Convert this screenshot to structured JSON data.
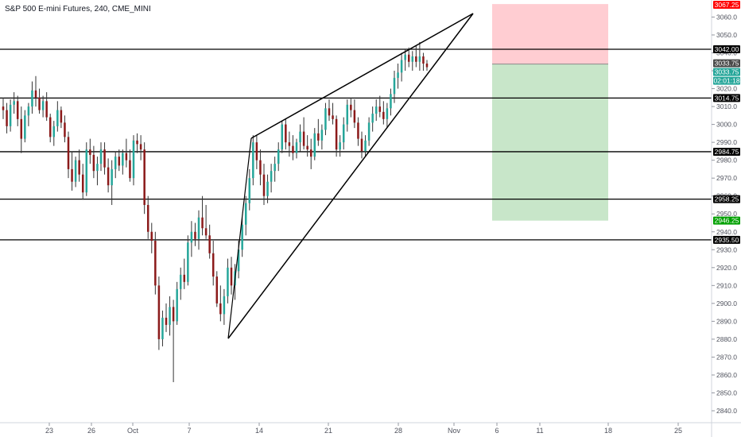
{
  "title": "S&P 500 E-mini Futures, 240, CME_MINI",
  "chart_data": {
    "type": "candlestick",
    "title": "S&P 500 E-mini Futures, 240, CME_MINI",
    "y_axis_position": "right",
    "ylim": [
      2835,
      3072
    ],
    "y_ticks": [
      2840,
      2850,
      2860,
      2870,
      2880,
      2890,
      2900,
      2910,
      2920,
      2930,
      2940,
      2950,
      2960,
      2970,
      2980,
      2990,
      3000,
      3010,
      3020,
      3030,
      3040,
      3050,
      3060
    ],
    "x_labels": [
      "23",
      "26",
      "Oct",
      "7",
      "14",
      "21",
      "28",
      "Nov",
      "6",
      "11",
      "18",
      "25"
    ],
    "horizontal_levels": [
      3042.0,
      3014.75,
      2984.75,
      2958.25,
      2935.5
    ],
    "price_badges": [
      {
        "label": "3067.25",
        "value": 3067.25,
        "bg": "#ff0000",
        "fg": "#ffffff"
      },
      {
        "label": "3042.00",
        "value": 3042.0,
        "bg": "#000000",
        "fg": "#ffffff"
      },
      {
        "label": "3033.75",
        "value": 3033.75,
        "bg": "#4a4a4a",
        "fg": "#ffffff"
      },
      {
        "label": "3033.75",
        "value": 3033.75,
        "bg": "#26a69a",
        "fg": "#ffffff"
      },
      {
        "label": "02:01:18",
        "value": 3033.75,
        "bg": "#26a69a",
        "fg": "#ffffff"
      },
      {
        "label": "3014.75",
        "value": 3014.75,
        "bg": "#000000",
        "fg": "#ffffff"
      },
      {
        "label": "2984.75",
        "value": 2984.75,
        "bg": "#000000",
        "fg": "#ffffff"
      },
      {
        "label": "2958.25",
        "value": 2958.25,
        "bg": "#000000",
        "fg": "#ffffff"
      },
      {
        "label": "2946.25",
        "value": 2946.25,
        "bg": "#00a000",
        "fg": "#ffffff"
      },
      {
        "label": "2935.50",
        "value": 2935.5,
        "bg": "#000000",
        "fg": "#ffffff"
      }
    ],
    "short_position": {
      "stop": 3067.25,
      "entry": 3033.75,
      "target": 2946.25,
      "risk_color": "#ffcdd2",
      "reward_color": "#c8e6c9"
    },
    "rising_wedge": {
      "upper": [
        [
          2994,
          "Oct 13"
        ],
        [
          3067,
          "Nov 1"
        ]
      ],
      "lower": [
        [
          2883,
          "Oct 10"
        ],
        [
          3067,
          "Nov 1"
        ]
      ]
    },
    "colors": {
      "up": "#26a69a",
      "down": "#8b1a1a",
      "wick": "#333333"
    },
    "candles": [
      [
        3010,
        3015,
        3003,
        3008
      ],
      [
        3008,
        3012,
        2995,
        2999
      ],
      [
        2999,
        3014,
        2996,
        3011
      ],
      [
        3011,
        3018,
        3006,
        3013
      ],
      [
        3013,
        3016,
        2999,
        3003
      ],
      [
        3003,
        3010,
        2984,
        2992
      ],
      [
        2992,
        3008,
        2990,
        3005
      ],
      [
        3005,
        3012,
        2999,
        3010
      ],
      [
        3010,
        3024,
        3006,
        3019
      ],
      [
        3019,
        3027,
        3010,
        3015
      ],
      [
        3015,
        3020,
        3006,
        3008
      ],
      [
        3008,
        3016,
        3004,
        3013
      ],
      [
        3013,
        3018,
        3002,
        3004
      ],
      [
        3004,
        3006,
        2990,
        2993
      ],
      [
        2993,
        3002,
        2988,
        2999
      ],
      [
        2999,
        3013,
        2996,
        3008
      ],
      [
        3008,
        3010,
        2998,
        3001
      ],
      [
        3001,
        3005,
        2990,
        2993
      ],
      [
        2993,
        2996,
        2970,
        2975
      ],
      [
        2975,
        2985,
        2963,
        2968
      ],
      [
        2968,
        2982,
        2965,
        2980
      ],
      [
        2980,
        2986,
        2968,
        2972
      ],
      [
        2972,
        2978,
        2958,
        2962
      ],
      [
        2962,
        2990,
        2960,
        2986
      ],
      [
        2986,
        2992,
        2978,
        2983
      ],
      [
        2983,
        2988,
        2970,
        2974
      ],
      [
        2974,
        2982,
        2966,
        2978
      ],
      [
        2978,
        2990,
        2974,
        2986
      ],
      [
        2986,
        2990,
        2972,
        2976
      ],
      [
        2976,
        2981,
        2962,
        2966
      ],
      [
        2966,
        2980,
        2955,
        2975
      ],
      [
        2975,
        2985,
        2970,
        2982
      ],
      [
        2982,
        2986,
        2974,
        2977
      ],
      [
        2977,
        2986,
        2972,
        2984
      ],
      [
        2984,
        2992,
        2976,
        2980
      ],
      [
        2980,
        2986,
        2968,
        2970
      ],
      [
        2970,
        2994,
        2966,
        2991
      ],
      [
        2991,
        2995,
        2984,
        2989
      ],
      [
        2989,
        2994,
        2980,
        2986
      ],
      [
        2986,
        2990,
        2950,
        2955
      ],
      [
        2955,
        2960,
        2936,
        2940
      ],
      [
        2940,
        2945,
        2928,
        2935
      ],
      [
        2935,
        2940,
        2905,
        2910
      ],
      [
        2910,
        2915,
        2874,
        2880
      ],
      [
        2880,
        2896,
        2876,
        2892
      ],
      [
        2892,
        2900,
        2884,
        2888
      ],
      [
        2888,
        2904,
        2882,
        2898
      ],
      [
        2898,
        2902,
        2856,
        2890
      ],
      [
        2890,
        2912,
        2888,
        2908
      ],
      [
        2908,
        2920,
        2902,
        2916
      ],
      [
        2916,
        2925,
        2908,
        2912
      ],
      [
        2912,
        2938,
        2910,
        2934
      ],
      [
        2934,
        2946,
        2926,
        2940
      ],
      [
        2940,
        2945,
        2932,
        2936
      ],
      [
        2936,
        2952,
        2930,
        2948
      ],
      [
        2948,
        2960,
        2938,
        2942
      ],
      [
        2942,
        2955,
        2936,
        2938
      ],
      [
        2938,
        2944,
        2925,
        2928
      ],
      [
        2928,
        2935,
        2910,
        2915
      ],
      [
        2915,
        2918,
        2898,
        2900
      ],
      [
        2900,
        2910,
        2890,
        2894
      ],
      [
        2894,
        2908,
        2888,
        2904
      ],
      [
        2904,
        2925,
        2900,
        2920
      ],
      [
        2920,
        2926,
        2905,
        2910
      ],
      [
        2910,
        2922,
        2902,
        2918
      ],
      [
        2918,
        2935,
        2914,
        2930
      ],
      [
        2930,
        2948,
        2926,
        2944
      ],
      [
        2944,
        2960,
        2938,
        2956
      ],
      [
        2956,
        2975,
        2952,
        2970
      ],
      [
        2970,
        2994,
        2966,
        2990
      ],
      [
        2990,
        2994,
        2975,
        2980
      ],
      [
        2980,
        2986,
        2966,
        2972
      ],
      [
        2972,
        2978,
        2955,
        2960
      ],
      [
        2960,
        2972,
        2956,
        2968
      ],
      [
        2968,
        2978,
        2962,
        2974
      ],
      [
        2974,
        2982,
        2968,
        2978
      ],
      [
        2978,
        2990,
        2974,
        2986
      ],
      [
        2986,
        3002,
        2984,
        3000
      ],
      [
        3000,
        3003,
        2986,
        2990
      ],
      [
        2990,
        2996,
        2982,
        2988
      ],
      [
        2988,
        2994,
        2980,
        2984
      ],
      [
        2984,
        2992,
        2981,
        2990
      ],
      [
        2990,
        3000,
        2985,
        2996
      ],
      [
        2996,
        3004,
        2986,
        2988
      ],
      [
        2988,
        2994,
        2982,
        2986
      ],
      [
        2986,
        2992,
        2975,
        2982
      ],
      [
        2982,
        2998,
        2980,
        2995
      ],
      [
        2995,
        3003,
        2988,
        2991
      ],
      [
        2991,
        3000,
        2986,
        2997
      ],
      [
        2997,
        3012,
        2994,
        3009
      ],
      [
        3009,
        3014,
        3002,
        3005
      ],
      [
        3005,
        3012,
        3000,
        3003
      ],
      [
        3003,
        3005,
        2982,
        2986
      ],
      [
        2986,
        2994,
        2982,
        2990
      ],
      [
        2990,
        3004,
        2986,
        3000
      ],
      [
        3000,
        3014,
        2996,
        3011
      ],
      [
        3011,
        3015,
        3004,
        3008
      ],
      [
        3008,
        3014,
        2998,
        3001
      ],
      [
        3001,
        3004,
        2988,
        2992
      ],
      [
        2992,
        2996,
        2981,
        2985
      ],
      [
        2985,
        2994,
        2982,
        2991
      ],
      [
        2991,
        3004,
        2988,
        3001
      ],
      [
        3001,
        3010,
        2996,
        3006
      ],
      [
        3006,
        3014,
        3002,
        3010
      ],
      [
        3010,
        3016,
        3004,
        3007
      ],
      [
        3007,
        3013,
        3000,
        3003
      ],
      [
        3003,
        3012,
        2998,
        3009
      ],
      [
        3009,
        3020,
        3005,
        3017
      ],
      [
        3017,
        3030,
        3012,
        3026
      ],
      [
        3026,
        3034,
        3020,
        3029
      ],
      [
        3029,
        3040,
        3024,
        3036
      ],
      [
        3036,
        3042,
        3030,
        3039
      ],
      [
        3039,
        3043,
        3032,
        3035
      ],
      [
        3035,
        3041,
        3030,
        3038
      ],
      [
        3038,
        3044,
        3032,
        3035
      ],
      [
        3035,
        3046,
        3030,
        3038
      ],
      [
        3038,
        3040,
        3030,
        3034
      ],
      [
        3034,
        3036,
        3030,
        3032
      ]
    ]
  }
}
